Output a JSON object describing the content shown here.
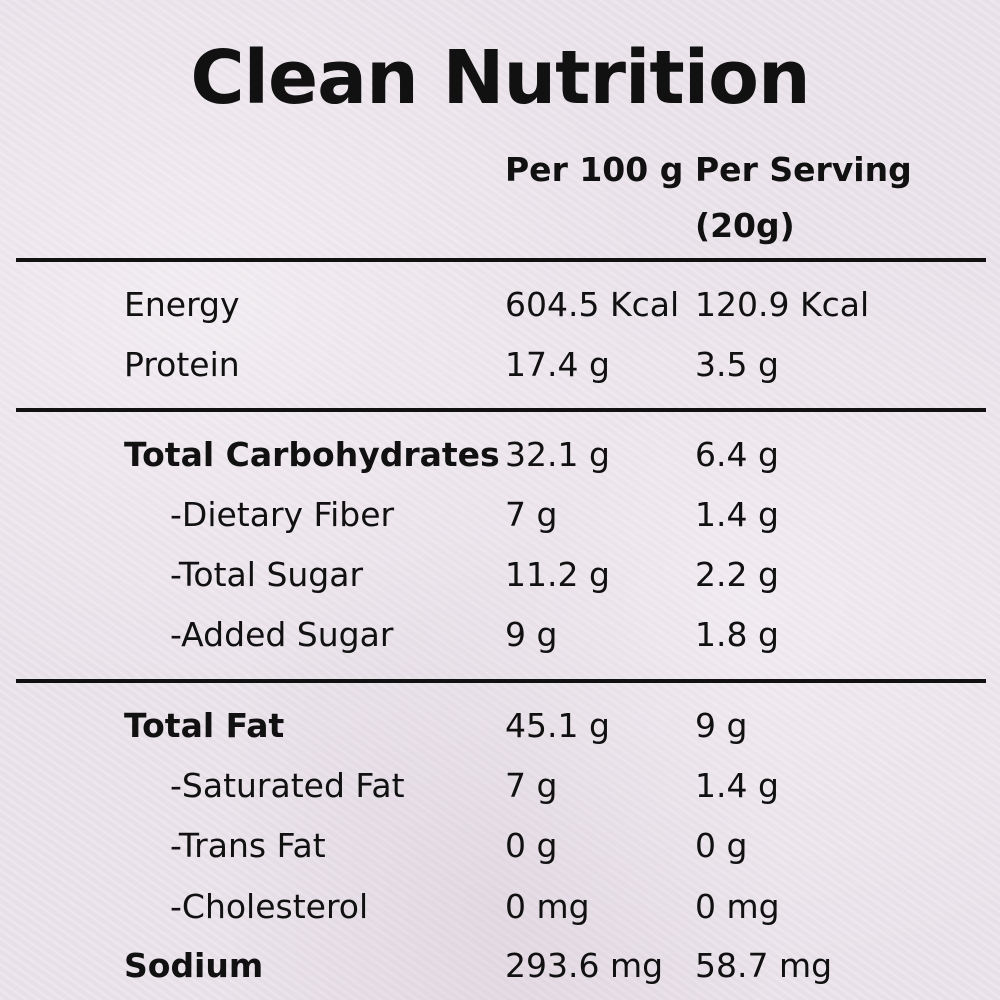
{
  "title": "Clean Nutrition",
  "columns": {
    "per100": "Per 100 g",
    "perServing": "Per Serving (20g)"
  },
  "rows": [
    {
      "label": "Energy",
      "per100": "604.5 Kcal",
      "perServing": "120.9 Kcal"
    },
    {
      "label": "Protein",
      "per100": "17.4 g",
      "perServing": "3.5 g"
    },
    {
      "label": "Total Carbohydrates",
      "per100": "32.1 g",
      "perServing": "6.4 g"
    },
    {
      "label": "-Dietary Fiber",
      "per100": "7 g",
      "perServing": "1.4 g"
    },
    {
      "label": "-Total Sugar",
      "per100": "11.2 g",
      "perServing": "2.2 g"
    },
    {
      "label": "-Added Sugar",
      "per100": "9 g",
      "perServing": "1.8 g"
    },
    {
      "label": "Total Fat",
      "per100": "45.1 g",
      "perServing": "9 g"
    },
    {
      "label": "-Saturated Fat",
      "per100": "7 g",
      "perServing": "1.4 g"
    },
    {
      "label": "-Trans Fat",
      "per100": "0 g",
      "perServing": "0 g"
    },
    {
      "label": "-Cholesterol",
      "per100": "0 mg",
      "perServing": "0 mg"
    },
    {
      "label": "Sodium",
      "per100": "293.6 mg",
      "perServing": "58.7 mg"
    }
  ]
}
